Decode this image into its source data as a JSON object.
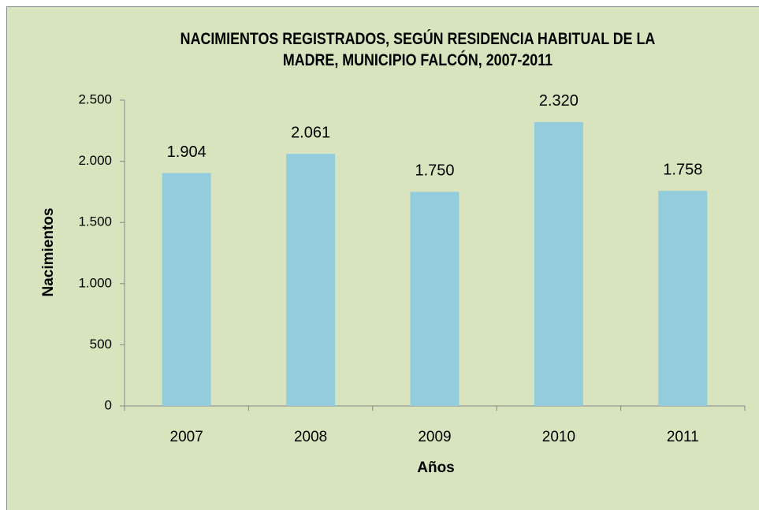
{
  "chart_data": {
    "type": "bar",
    "title": "NACIMIENTOS REGISTRADOS, SEGÚN RESIDENCIA HABITUAL DE LA MADRE, MUNICIPIO FALCÓN, 2007-2011",
    "x_label": "Años",
    "y_label": "Nacimientos",
    "categories": [
      "2007",
      "2008",
      "2009",
      "2010",
      "2011"
    ],
    "values": [
      1904,
      2061,
      1750,
      2320,
      1758
    ],
    "value_labels": [
      "1.904",
      "2.061",
      "1.750",
      "2.320",
      "1.758"
    ],
    "color": "#93cddd",
    "ylim": [
      0,
      2500
    ],
    "yticks": [
      0,
      500,
      {
        "value": 1000,
        "label": "1.000"
      },
      {
        "value": 1500,
        "label": "1.500"
      },
      {
        "value": 2000,
        "label": "2.000"
      },
      {
        "value": 2500,
        "label": "2.500"
      }
    ],
    "grid": false
  }
}
